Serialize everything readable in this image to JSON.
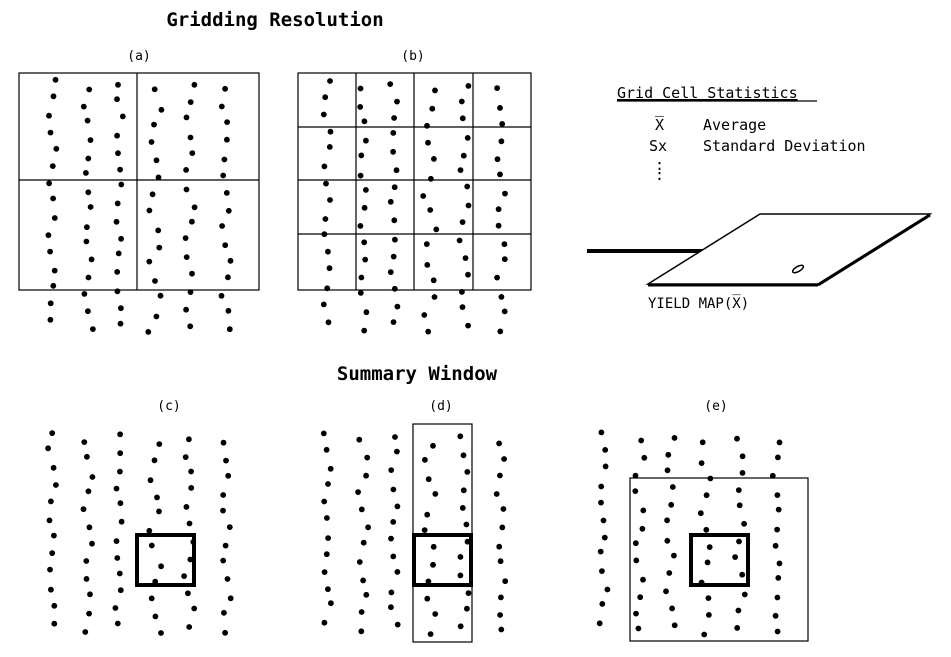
{
  "titles": {
    "gridding": "Gridding Resolution",
    "summary": "Summary Window"
  },
  "panels": {
    "a": "(a)",
    "b": "(b)",
    "c": "(c)",
    "d": "(d)",
    "e": "(e)"
  },
  "stats": {
    "heading": "Grid Cell Statistics",
    "items": [
      {
        "symbol": "X̅",
        "label": "Average"
      },
      {
        "symbol": "Sx",
        "label": "Standard Deviation"
      }
    ],
    "more": ":"
  },
  "map": {
    "label": "YIELD MAP(X̅)"
  }
}
